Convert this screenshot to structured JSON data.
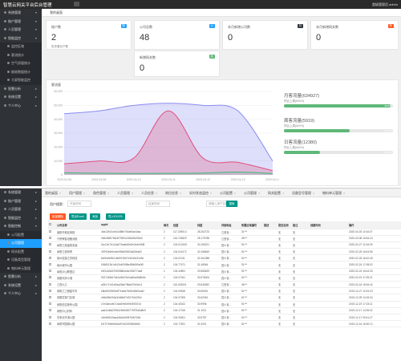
{
  "panel1": {
    "header": {
      "title": "智慧云网关平台后台管理",
      "user": "超级管理员 admin"
    },
    "sidebar": [
      {
        "label": "系统管理",
        "chev": "▾"
      },
      {
        "label": "账户管理",
        "chev": "▾"
      },
      {
        "label": "人员管理",
        "chev": "▾"
      },
      {
        "label": "智能监控",
        "chev": "▾"
      },
      {
        "label": "监控区域",
        "chev": "",
        "sub": true
      },
      {
        "label": "客流统计",
        "chev": "",
        "sub": true
      },
      {
        "label": "空气质量统计",
        "chev": "",
        "sub": true
      },
      {
        "label": "能耗数据统计",
        "chev": "",
        "sub": true
      },
      {
        "label": "大屏智能监控",
        "chev": "",
        "sub": true
      },
      {
        "label": "智慧分析",
        "chev": "▸"
      },
      {
        "label": "系统设置",
        "chev": "▸"
      },
      {
        "label": "个人中心",
        "chev": "▸"
      }
    ],
    "tab": "我的桌面",
    "cards": [
      {
        "label": "账户数",
        "badge": "账",
        "value": "2",
        "sub": "历史增长户数"
      },
      {
        "label": "公司总数",
        "badge": "公",
        "value": "48",
        "sub": ""
      },
      {
        "label": "本月新增公司数",
        "badge": "月",
        "value": "0",
        "sub": ""
      },
      {
        "label": "本月新增网关数",
        "badge": "年",
        "value": "0",
        "sub": ""
      },
      {
        "label": "新增网关数",
        "badge": "实",
        "value": "0",
        "sub": ""
      }
    ],
    "chart_title": "客流量",
    "stats": [
      {
        "title": "月客流量(634927)",
        "sub": "同比上周(600%)",
        "pct": 98,
        "pct_label": "98.8%"
      },
      {
        "title": "周客流量(5919)",
        "sub": "同比上周(600%)",
        "pct": 60,
        "pct_label": "60.4%"
      },
      {
        "title": "日客流量(12380)",
        "sub": "同比上周(600%)",
        "pct": 33,
        "pct_label": "33.9%"
      }
    ]
  },
  "chart_data": {
    "type": "area",
    "x": [
      "2020-04-06",
      "2020-04-08",
      "2020-04-10",
      "2020-04-11",
      "2020-04-12",
      "2020-04-13",
      "2020-04-14"
    ],
    "ylim": [
      0,
      60000
    ],
    "yticks": [
      "60,000",
      "50,000",
      "40,000",
      "30,000",
      "20,000",
      "10,000",
      "0"
    ],
    "series": [
      {
        "values": [
          44000,
          46000,
          50000,
          51500,
          50000,
          46000,
          10000
        ],
        "color": "#8a8cf0"
      },
      {
        "values": [
          8000,
          10000,
          12000,
          46000,
          12000,
          9000,
          3000
        ],
        "color": "#e0507a"
      },
      {
        "values": [
          1500,
          1200,
          1000,
          1100,
          1300,
          2000,
          1000
        ],
        "color": "#3cb878"
      }
    ]
  },
  "panel2": {
    "sidebar": [
      {
        "label": "系统管理",
        "chev": "▸"
      },
      {
        "label": "账户管理",
        "chev": "▸"
      },
      {
        "label": "人员管理",
        "chev": "▸"
      },
      {
        "label": "智能监控",
        "chev": "▸"
      },
      {
        "label": "智能控制",
        "chev": "▾"
      },
      {
        "label": "公司配置",
        "chev": "",
        "sub": true
      },
      {
        "label": "公司管理",
        "chev": "",
        "sub": true,
        "active": true
      },
      {
        "label": "网关配置",
        "chev": "",
        "sub": true
      },
      {
        "label": "设备类型管理",
        "chev": "",
        "sub": true
      },
      {
        "label": "物料单元管理",
        "chev": "",
        "sub": true
      },
      {
        "label": "智慧分析",
        "chev": "▸"
      },
      {
        "label": "系统设置",
        "chev": "▸"
      },
      {
        "label": "个人中心",
        "chev": "▸"
      }
    ],
    "nav": [
      "我的桌面",
      "用户管理",
      "角色管理",
      "人员管理",
      "人员信息",
      "岗位信息",
      "实时状态监控",
      "公司配置",
      "公司管理",
      "网关配置",
      "设备型号管理",
      "物料单元管理"
    ],
    "search": {
      "label": "用户搜索：",
      "start": "开始时间",
      "end": "结束时间",
      "keyword": "请输入用户名称",
      "button": "搜索"
    },
    "toolbar": {
      "delete": "批量删除",
      "add": "添加",
      "export": "导出Excel",
      "import": "导入EXCEL"
    },
    "columns": [
      "",
      "公司名称",
      "appId",
      "网关",
      "经度",
      "纬度",
      "详细地址",
      "所属区域编号",
      "描述",
      "是否启用",
      "备注",
      "创建时间",
      "操作"
    ],
    "rows": [
      [
        "襄阳市城区网络",
        "4ba13fc31e4444f8bf7b0a6fca4daa",
        "2",
        "117.209014",
        "28.262723",
        "江西省...",
        "31***",
        "",
        "无",
        "无",
        "",
        "2020-04-03 10:16:07",
        "编辑"
      ],
      [
        "兴贸荣智设备测验",
        "0b6cf8607bfd4f709f0c238c08d7fdd0",
        "2",
        "116.743829",
        "28.179788",
        "江西省...",
        "36***",
        "",
        "无",
        "无",
        "",
        "2020-03-08 16:54:24",
        "编辑"
      ],
      [
        "阜阳江淮建筑安装",
        "0cc10c7fc144a07baab80d2e0e4e06f8",
        "2",
        "104.012349",
        "31.056221",
        "四川省...",
        "51***",
        "",
        "无",
        "无",
        "",
        "2020-02-27 12:16:09",
        "编辑"
      ],
      [
        "阜阳江淮商贸",
        "4f7f93e6f4eb4e9f6b05520a824fa60",
        "2",
        "104.011072",
        "31.068649",
        "四川省...",
        "51***",
        "",
        "无",
        "无",
        "",
        "2020-02-25 16:44:55",
        "编辑"
      ],
      [
        "赣州宏建江苏科技",
        "6e0b6b09b1d469192b7e30d2d31e9e",
        "2",
        "104.01011",
        "31.061088",
        "四川省...",
        "51***",
        "",
        "无",
        "无",
        "",
        "2020-02-25 16:42:45",
        "编辑"
      ],
      [
        "赣州城市公园",
        "0068013b1c542e4f26f8e4f8b069a0f0",
        "2",
        "104.77471",
        "31.46964",
        "四川省...",
        "51***",
        "",
        "无",
        "无",
        "",
        "2020-02-24 17:08:02",
        "编辑"
      ],
      [
        "阜阳泸山联盟达",
        "b0f14d3cf07f4f05884ebd198277aa8",
        "2",
        "104.44891",
        "29.565629",
        "四川省...",
        "51***",
        "",
        "无",
        "无",
        "",
        "2020-02-24 16:44:33",
        "编辑"
      ],
      [
        "成都天府小港",
        "93274f0d67c64cd9d74e0a60ad9d8e6b",
        "2",
        "104.07041",
        "30.578004",
        "四川省...",
        "51***",
        "",
        "无",
        "无",
        "",
        "2020-02-19 17:09:21",
        "编辑"
      ],
      [
        "江西九江",
        "a0517c7d1e9aa25ab7f8ab07bf4e14",
        "2",
        "116.023001",
        "29.645282",
        "江西省...",
        "36***",
        "",
        "无",
        "无",
        "",
        "2020-02-18 15:54:42",
        "编辑"
      ],
      [
        "赣阳江工程建华东",
        "e8b6523365b3f7ee8a7600bd9d9cdd2",
        "2",
        "104.00818",
        "30.65091",
        "四川省...",
        "51***",
        "",
        "无",
        "无",
        "",
        "2019-12-27 10:19:23",
        "编辑"
      ],
      [
        "成都富源门区城",
        "c5db08e2b3a34d6b87e32761d2f0d",
        "2",
        "104.07005",
        "30.62061",
        "四川省...",
        "51***",
        "",
        "无",
        "无",
        "",
        "2019-12-25 14:15:34",
        "编辑"
      ],
      [
        "赣阳伯拉斯有公园",
        "c7e4aeccfe214a4b9e0e9e0f0f2014",
        "2",
        "104.40022",
        "30.9996",
        "四川省...",
        "51***",
        "",
        "无",
        "无",
        "",
        "2019-12-19 17:23:11",
        "编辑"
      ],
      [
        "赣阳中山村科",
        "aad41d6d2993426e9d53775f79a5d8e9",
        "2",
        "104.17315",
        "31.1011",
        "四川省...",
        "51***",
        "",
        "无",
        "无",
        "",
        "2019-12-17 14:25:02",
        "编辑"
      ],
      [
        "东家北华滨公园",
        "c3ed90b20aa4d0d2a9057b0b7064",
        "2",
        "104.93001",
        "30.5787",
        "四川省...",
        "51***",
        "",
        "无",
        "无",
        "",
        "2019-12-17 09:41:27",
        "编辑"
      ],
      [
        "阜阳市园城公园",
        "f317f7b3b6f4b3af7b42020864fd80",
        "2",
        "104.77821",
        "31.0001",
        "四川省...",
        "51***",
        "",
        "无",
        "无",
        "",
        "2019-12-16 16:30:12",
        "编辑"
      ]
    ]
  },
  "colors": {
    "sidebar": "#2f3337",
    "primary": "#009688",
    "blue": "#1e9fff",
    "danger": "#ff5722",
    "green": "#5fb878"
  }
}
